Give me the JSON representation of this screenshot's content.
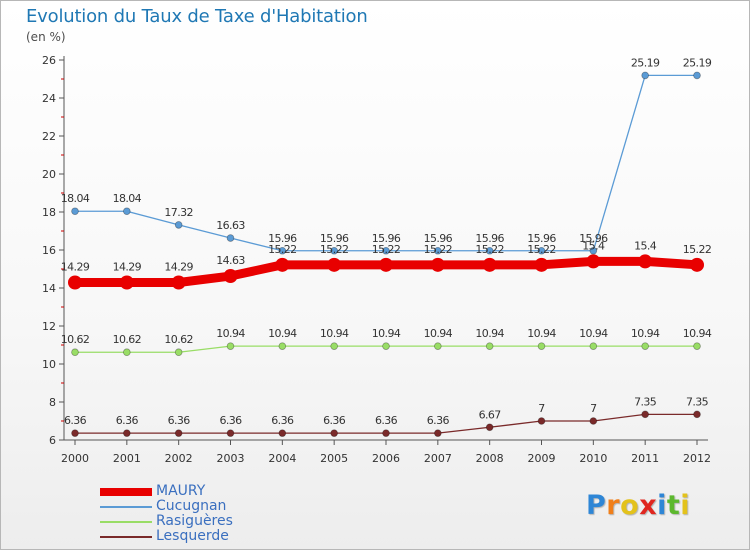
{
  "header": {
    "title": "Evolution du Taux de Taxe d'Habitation",
    "unit": "(en %)"
  },
  "logo": {
    "letters": [
      "P",
      "r",
      "o",
      "x",
      "i",
      "t",
      "i"
    ],
    "colors": [
      "#2e86d6",
      "#f07f1a",
      "#e3c21b",
      "#e0261f",
      "#2e86d6",
      "#5cb82e",
      "#e3c21b"
    ]
  },
  "chart_data": {
    "type": "line",
    "x": [
      "2000",
      "2001",
      "2002",
      "2003",
      "2004",
      "2005",
      "2006",
      "2007",
      "2008",
      "2009",
      "2010",
      "2011",
      "2012"
    ],
    "ylim": [
      6,
      26
    ],
    "yticks": [
      "6",
      "8",
      "10",
      "12",
      "14",
      "16",
      "18",
      "20",
      "22",
      "24",
      "26"
    ],
    "grid": false,
    "legend_position": "bottom-left",
    "series": [
      {
        "name": "MAURY",
        "color": "#e80000",
        "values": [
          14.29,
          14.29,
          14.29,
          14.63,
          15.22,
          15.22,
          15.22,
          15.22,
          15.22,
          15.22,
          15.4,
          15.4,
          15.22
        ],
        "labels": [
          "14.29",
          "14.29",
          "14.29",
          "14.63",
          "15.22",
          "15.22",
          "15.22",
          "15.22",
          "15.22",
          "15.22",
          "15.4",
          "15.4",
          "15.22"
        ]
      },
      {
        "name": "Cucugnan",
        "color": "#5b9bd5",
        "values": [
          18.04,
          18.04,
          17.32,
          16.63,
          15.96,
          15.96,
          15.96,
          15.96,
          15.96,
          15.96,
          15.96,
          25.19,
          25.19
        ],
        "labels": [
          "18.04",
          "18.04",
          "17.32",
          "16.63",
          "15.96",
          "15.96",
          "15.96",
          "15.96",
          "15.96",
          "15.96",
          "15.96",
          "25.19",
          "25.19"
        ]
      },
      {
        "name": "Rasiguères",
        "color": "#99dd66",
        "values": [
          10.62,
          10.62,
          10.62,
          10.94,
          10.94,
          10.94,
          10.94,
          10.94,
          10.94,
          10.94,
          10.94,
          10.94,
          10.94
        ],
        "labels": [
          "10.62",
          "10.62",
          "10.62",
          "10.94",
          "10.94",
          "10.94",
          "10.94",
          "10.94",
          "10.94",
          "10.94",
          "10.94",
          "10.94",
          "10.94"
        ]
      },
      {
        "name": "Lesquerde",
        "color": "#7a2a2a",
        "values": [
          6.36,
          6.36,
          6.36,
          6.36,
          6.36,
          6.36,
          6.36,
          6.36,
          6.67,
          7,
          7,
          7.35,
          7.35
        ],
        "labels": [
          "6.36",
          "6.36",
          "6.36",
          "6.36",
          "6.36",
          "6.36",
          "6.36",
          "6.36",
          "6.67",
          "7",
          "7",
          "7.35",
          "7.35"
        ]
      }
    ]
  }
}
